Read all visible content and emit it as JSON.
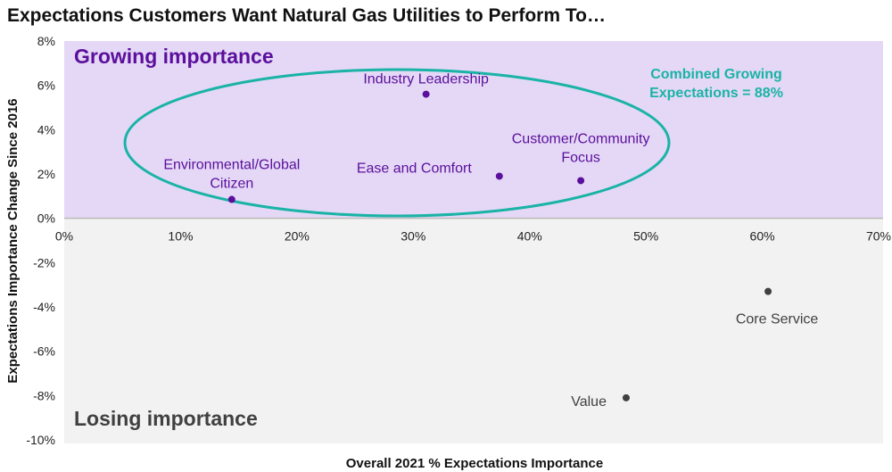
{
  "chart_data": {
    "type": "scatter",
    "title": "Expectations Customers Want Natural Gas Utilities to Perform To…",
    "xlabel": "Overall 2021 % Expectations Importance",
    "ylabel": "Expectations Importance Change Since 2016",
    "xlim": [
      0,
      70
    ],
    "ylim": [
      -10,
      8
    ],
    "x_ticks": [
      "0%",
      "10%",
      "20%",
      "30%",
      "40%",
      "50%",
      "60%",
      "70%"
    ],
    "y_ticks": [
      "8%",
      "6%",
      "4%",
      "2%",
      "0%",
      "-2%",
      "-4%",
      "-6%",
      "-8%",
      "-10%"
    ],
    "grid": false,
    "regions": {
      "growing": "Growing importance",
      "losing": "Losing importance"
    },
    "annotation": {
      "line1": "Combined Growing",
      "line2": "Expectations = 88%"
    },
    "points": [
      {
        "label": [
          "Industry Leadership"
        ],
        "x": 31.1,
        "y": 5.6,
        "group": "growing"
      },
      {
        "label": [
          "Environmental/Global",
          "Citizen"
        ],
        "x": 14.4,
        "y": 0.85,
        "group": "growing"
      },
      {
        "label": [
          "Ease and Comfort"
        ],
        "x": 37.4,
        "y": 1.9,
        "group": "growing"
      },
      {
        "label": [
          "Customer/Community",
          "Focus"
        ],
        "x": 44.4,
        "y": 1.7,
        "group": "growing"
      },
      {
        "label": [
          "Core Service"
        ],
        "x": 60.5,
        "y": -3.3,
        "group": "losing"
      },
      {
        "label": [
          "Value"
        ],
        "x": 48.3,
        "y": -8.1,
        "group": "losing"
      }
    ],
    "colors": {
      "growing_bg": "#e4d8f6",
      "losing_bg": "#f2f2f2",
      "growing_text": "#5b0f9c",
      "losing_text": "#404040",
      "ellipse": "#1ab3a6"
    }
  }
}
